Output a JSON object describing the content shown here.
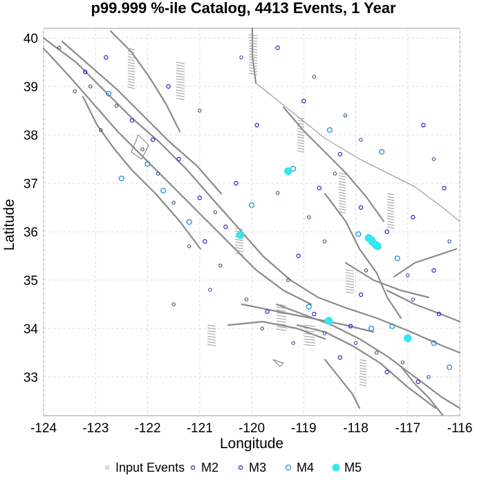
{
  "chart_data": {
    "type": "scatter",
    "title": "p99.999 %-ile Catalog, 4413 Events, 1 Year",
    "xlabel": "Longitude",
    "ylabel": "Latitude",
    "xlim": [
      -124,
      -116
    ],
    "ylim": [
      32.2,
      40.2
    ],
    "xticks": [
      "-124",
      "-123",
      "-122",
      "-121",
      "-120",
      "-119",
      "-118",
      "-117",
      "-116"
    ],
    "yticks": [
      "33",
      "34",
      "35",
      "36",
      "37",
      "38",
      "39",
      "40"
    ],
    "grid": true,
    "background_layer": "California fault traces (gray lines)",
    "legend": {
      "placement": "bottom-center",
      "entries": [
        {
          "label": "Input Events",
          "marker": "small-open-circle",
          "color": "#999999"
        },
        {
          "label": "M2",
          "marker": "open-circle",
          "color": "#1a3f7a"
        },
        {
          "label": "M3",
          "marker": "open-circle",
          "color": "#3d14c4"
        },
        {
          "label": "M4",
          "marker": "open-circle",
          "color": "#1a8fd0"
        },
        {
          "label": "M5",
          "marker": "filled-circle",
          "color": "#33e6f2"
        }
      ]
    },
    "series": [
      {
        "name": "M5",
        "points": [
          [
            -117.75,
            35.87
          ],
          [
            -117.68,
            35.79
          ],
          [
            -117.62,
            35.73
          ],
          [
            -117.58,
            35.7
          ],
          [
            -117.7,
            35.83
          ],
          [
            -119.3,
            37.25
          ],
          [
            -120.22,
            35.93
          ],
          [
            -118.52,
            34.16
          ],
          [
            -117.0,
            33.8
          ]
        ]
      },
      {
        "name": "M4",
        "points": [
          [
            -122.75,
            38.85
          ],
          [
            -122.0,
            37.4
          ],
          [
            -121.7,
            36.85
          ],
          [
            -120.0,
            36.55
          ],
          [
            -119.2,
            37.3
          ],
          [
            -118.5,
            38.1
          ],
          [
            -117.5,
            37.65
          ],
          [
            -117.95,
            35.95
          ],
          [
            -117.2,
            35.45
          ],
          [
            -118.9,
            34.45
          ],
          [
            -117.3,
            34.05
          ],
          [
            -116.5,
            33.7
          ],
          [
            -116.2,
            33.2
          ],
          [
            -117.7,
            34.0
          ],
          [
            -121.2,
            36.2
          ],
          [
            -122.5,
            37.1
          ]
        ]
      },
      {
        "name": "M3",
        "points": [
          [
            -123.2,
            39.3
          ],
          [
            -122.8,
            39.6
          ],
          [
            -122.3,
            38.3
          ],
          [
            -121.9,
            37.9
          ],
          [
            -121.4,
            37.5
          ],
          [
            -121.0,
            36.7
          ],
          [
            -120.5,
            36.1
          ],
          [
            -120.9,
            35.8
          ],
          [
            -119.9,
            38.2
          ],
          [
            -119.5,
            39.8
          ],
          [
            -119.0,
            38.7
          ],
          [
            -118.7,
            36.9
          ],
          [
            -118.3,
            37.6
          ],
          [
            -117.9,
            36.5
          ],
          [
            -117.4,
            36.0
          ],
          [
            -116.9,
            36.3
          ],
          [
            -116.5,
            35.2
          ],
          [
            -116.4,
            34.3
          ],
          [
            -117.9,
            34.7
          ],
          [
            -118.1,
            34.05
          ],
          [
            -118.8,
            34.3
          ],
          [
            -119.7,
            34.35
          ],
          [
            -118.3,
            33.4
          ],
          [
            -117.4,
            33.1
          ],
          [
            -116.8,
            32.9
          ],
          [
            -116.3,
            36.9
          ],
          [
            -116.7,
            38.2
          ],
          [
            -121.6,
            39.0
          ],
          [
            -120.3,
            37.0
          ],
          [
            -119.1,
            35.5
          ]
        ]
      },
      {
        "name": "M2",
        "points": [
          [
            -123.7,
            39.8
          ],
          [
            -123.4,
            38.9
          ],
          [
            -122.6,
            38.6
          ],
          [
            -122.1,
            37.7
          ],
          [
            -121.8,
            37.2
          ],
          [
            -121.5,
            36.6
          ],
          [
            -120.7,
            36.4
          ],
          [
            -120.6,
            35.3
          ],
          [
            -121.2,
            35.7
          ],
          [
            -121.5,
            34.5
          ],
          [
            -120.8,
            34.8
          ],
          [
            -119.8,
            34.0
          ],
          [
            -119.2,
            33.7
          ],
          [
            -118.6,
            33.9
          ],
          [
            -118.0,
            33.7
          ],
          [
            -117.6,
            33.5
          ],
          [
            -117.1,
            33.3
          ],
          [
            -116.6,
            33.0
          ],
          [
            -116.9,
            34.6
          ],
          [
            -117.8,
            35.2
          ],
          [
            -118.6,
            35.8
          ],
          [
            -118.9,
            36.3
          ],
          [
            -119.5,
            36.8
          ],
          [
            -118.4,
            37.2
          ],
          [
            -117.9,
            37.9
          ],
          [
            -118.8,
            39.2
          ],
          [
            -120.2,
            39.6
          ],
          [
            -121.0,
            38.5
          ],
          [
            -122.9,
            38.1
          ],
          [
            -123.1,
            39.0
          ],
          [
            -118.2,
            38.4
          ],
          [
            -116.5,
            37.5
          ],
          [
            -116.2,
            35.8
          ],
          [
            -117.0,
            35.1
          ],
          [
            -119.3,
            35.0
          ],
          [
            -120.1,
            34.6
          ]
        ]
      }
    ]
  }
}
